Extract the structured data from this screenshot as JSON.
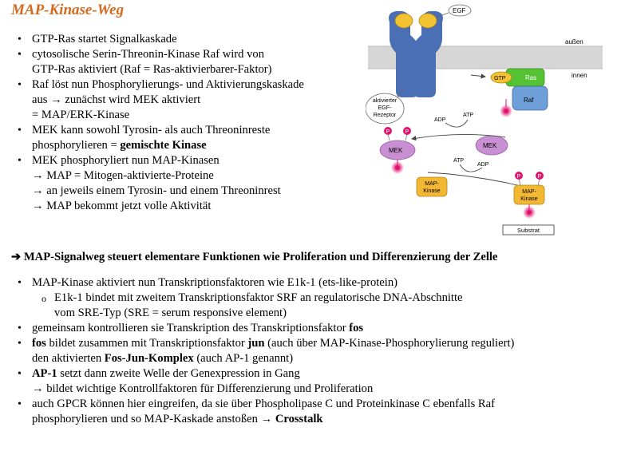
{
  "title": "MAP-Kinase-Weg",
  "top_bullets": [
    {
      "lines": [
        "GTP-Ras startet Signalkaskade"
      ]
    },
    {
      "lines": [
        "cytosolische Serin-Threonin-Kinase Raf wird von",
        "GTP-Ras aktiviert (Raf = Ras-aktivierbarer-Faktor)"
      ]
    },
    {
      "lines": [
        "Raf löst nun Phosphorylierungs- und Aktivierungskaskade",
        "aus → zunächst wird MEK aktiviert",
        "= MAP/ERK-Kinase"
      ]
    },
    {
      "line1": "MEK kann sowohl Tyrosin- als auch Threoninreste",
      "line2_pre": "phosphorylieren = ",
      "line2_bold": "gemischte Kinase"
    },
    {
      "lines": [
        "MEK phosphoryliert nun MAP-Kinasen",
        "→ MAP = Mitogen-aktivierte-Proteine",
        "→ an jeweils einem Tyrosin- und einem Threoninrest",
        "→ MAP bekommt jetzt volle Aktivität"
      ]
    }
  ],
  "summary": "➔ MAP-Signalweg steuert elementare Funktionen wie Proliferation und Differenzierung der Zelle",
  "bottom": {
    "b1": "MAP-Kinase aktiviert nun Transkriptionsfaktoren wie E1k-1 (ets-like-protein)",
    "b1_sub_l1": "E1k-1 bindet mit zweitem Transkriptionsfaktor SRF an regulatorische DNA-Abschnitte",
    "b1_sub_l2": "vom SRE-Typ (SRE = serum responsive element)",
    "b2_pre": "gemeinsam kontrollieren sie Transkription des Transkriptionsfaktor ",
    "b2_bold": "fos",
    "b3_bold1": "fos",
    "b3_mid1": " bildet zusammen mit Transkriptionsfaktor ",
    "b3_bold2": "jun",
    "b3_mid2": " (auch über MAP-Kinase-Phosphorylierung reguliert)",
    "b3_l2_pre": "den aktivierten ",
    "b3_l2_bold": "Fos-Jun-Komplex",
    "b3_l2_post": " (auch AP-1 genannt)",
    "b4_bold": "AP-1",
    "b4_post": " setzt dann zweite Welle der Genexpression in Gang",
    "b4_l2": "→ bildet wichtige Kontrollfaktoren für Differenzierung und Proliferation",
    "b5_l1": "auch GPCR können hier eingreifen, da sie über Phospholipase C und Proteinkinase C ebenfalls Raf",
    "b5_l2_pre": "phosphorylieren und so MAP-Kaskade anstoßen → ",
    "b5_l2_bold": "Crosstalk"
  },
  "figure": {
    "egf": "EGF",
    "aussen": "außen",
    "innen": "innen",
    "gtp": "GTP",
    "ras": "Ras",
    "raf": "Raf",
    "receptor_l1": "aktivierter",
    "receptor_l2": "EGF-",
    "receptor_l3": "Rezeptor",
    "adp1": "ADP",
    "atp1": "ATP",
    "mek_active": "MEK",
    "mek_inactive": "MEK",
    "atp2": "ATP",
    "adp2": "ADP",
    "map_inactive_l1": "MAP-",
    "map_inactive_l2": "Kinase",
    "map_active_l1": "MAP-",
    "map_active_l2": "Kinase",
    "p": "P",
    "substrat": "Substrat"
  }
}
